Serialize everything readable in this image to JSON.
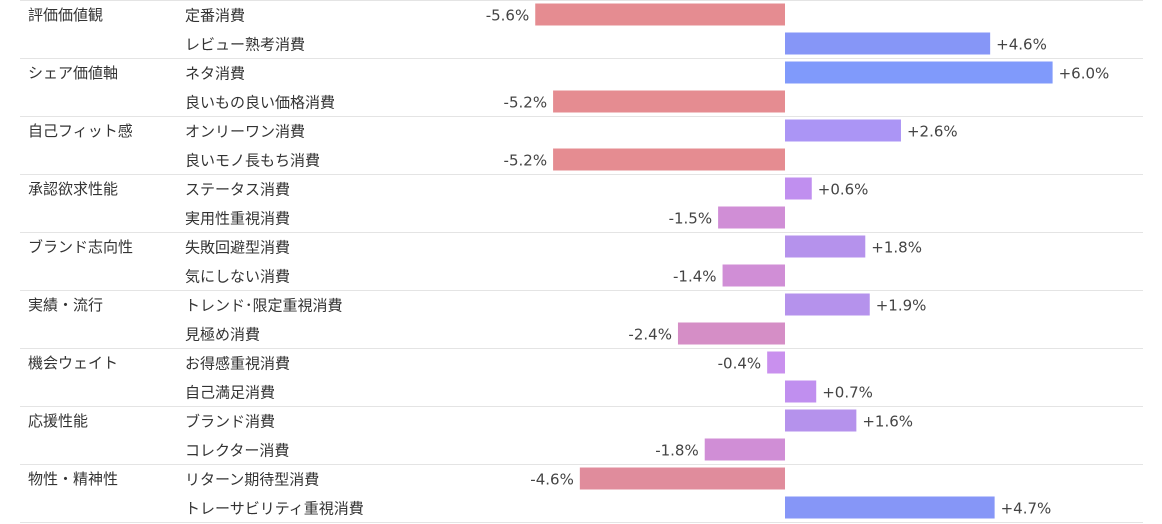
{
  "chart_data": {
    "type": "bar",
    "orientation": "horizontal",
    "groups": [
      {
        "name": "評価価値観",
        "rows": [
          {
            "label": "定番消費",
            "value": -5.6,
            "display": "-5.6%",
            "color": "#e58c91"
          },
          {
            "label": "レビュー熟考消費",
            "value": 4.6,
            "display": "+4.6%",
            "color": "#8696f7"
          }
        ]
      },
      {
        "name": "シェア価値軸",
        "rows": [
          {
            "label": "ネタ消費",
            "value": 6.0,
            "display": "+6.0%",
            "color": "#809afb"
          },
          {
            "label": "良いもの良い価格消費",
            "value": -5.2,
            "display": "-5.2%",
            "color": "#e58c91"
          }
        ]
      },
      {
        "name": "自己フィット感",
        "rows": [
          {
            "label": "オンリーワン消費",
            "value": 2.6,
            "display": "+2.6%",
            "color": "#ab95f5"
          },
          {
            "label": "良いモノ長もち消費",
            "value": -5.2,
            "display": "-5.2%",
            "color": "#e58c91"
          }
        ]
      },
      {
        "name": "承認欲求性能",
        "rows": [
          {
            "label": "ステータス消費",
            "value": 0.6,
            "display": "+0.6%",
            "color": "#c08fef"
          },
          {
            "label": "実用性重視消費",
            "value": -1.5,
            "display": "-1.5%",
            "color": "#d08ed6"
          }
        ]
      },
      {
        "name": "ブランド志向性",
        "rows": [
          {
            "label": "失敗回避型消費",
            "value": 1.8,
            "display": "+1.8%",
            "color": "#b592ec"
          },
          {
            "label": "気にしない消費",
            "value": -1.4,
            "display": "-1.4%",
            "color": "#d08ed6"
          }
        ]
      },
      {
        "name": "実績・流行",
        "rows": [
          {
            "label": "トレンド･限定重視消費",
            "value": 1.9,
            "display": "+1.9%",
            "color": "#b592ec"
          },
          {
            "label": "見極め消費",
            "value": -2.4,
            "display": "-2.4%",
            "color": "#d58ec6"
          }
        ]
      },
      {
        "name": "機会ウェイト",
        "rows": [
          {
            "label": "お得感重視消費",
            "value": -0.4,
            "display": "-0.4%",
            "color": "#c990ee"
          },
          {
            "label": "自己満足消費",
            "value": 0.7,
            "display": "+0.7%",
            "color": "#c08fef"
          }
        ]
      },
      {
        "name": "応援性能",
        "rows": [
          {
            "label": "ブランド消費",
            "value": 1.6,
            "display": "+1.6%",
            "color": "#b592ec"
          },
          {
            "label": "コレクター消費",
            "value": -1.8,
            "display": "-1.8%",
            "color": "#d08ed6"
          }
        ]
      },
      {
        "name": "物性・精神性",
        "rows": [
          {
            "label": "リターン期待型消費",
            "value": -4.6,
            "display": "-4.6%",
            "color": "#e08c9c"
          },
          {
            "label": "トレーサビリティ重視消費",
            "value": 4.7,
            "display": "+4.7%",
            "color": "#8696f7"
          }
        ]
      }
    ],
    "xlim": [
      -6.0,
      6.0
    ],
    "grid": false,
    "legend": "none"
  }
}
